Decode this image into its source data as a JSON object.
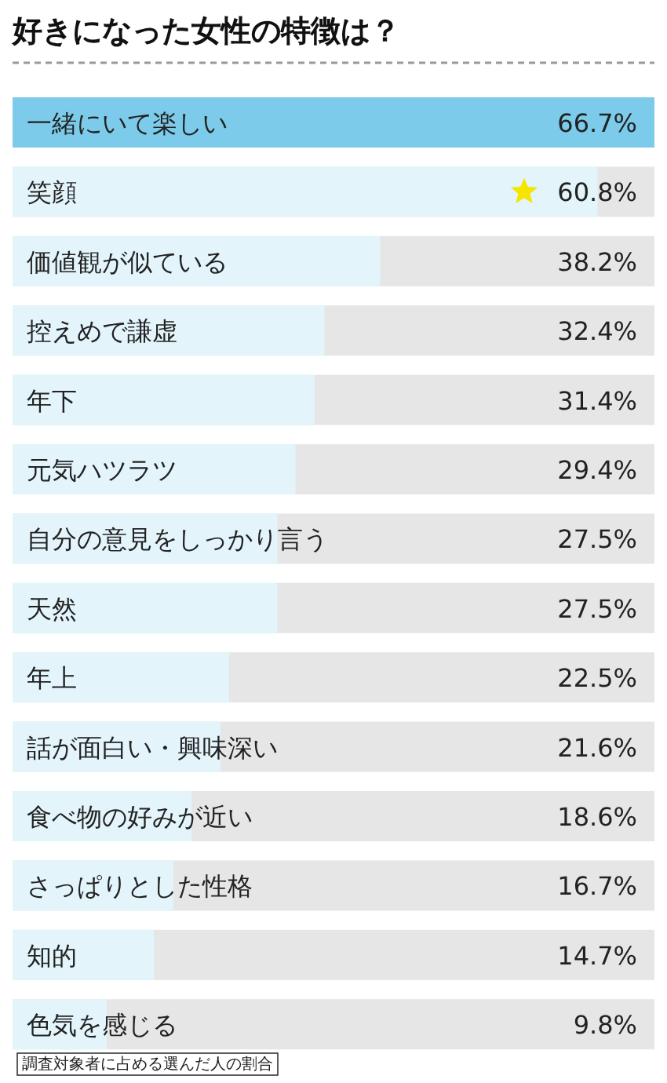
{
  "chart_data": {
    "type": "bar",
    "orientation": "horizontal",
    "title": "好きになった女性の特徴は？",
    "categories": [
      "一緒にいて楽しい",
      "笑顔",
      "価値観が似ている",
      "控えめで謙虚",
      "年下",
      "元気ハツラツ",
      "自分の意見をしっかり言う",
      "天然",
      "年上",
      "話が面白い・興味深い",
      "食べ物の好みが近い",
      "さっぱりとした性格",
      "知的",
      "色気を感じる"
    ],
    "values": [
      66.7,
      60.8,
      38.2,
      32.4,
      31.4,
      29.4,
      27.5,
      27.5,
      22.5,
      21.6,
      18.6,
      16.7,
      14.7,
      9.8
    ],
    "colors": [
      "#7ccbea",
      "#e3f4fb",
      "#e3f4fb",
      "#e3f4fb",
      "#e3f4fb",
      "#e3f4fb",
      "#e3f4fb",
      "#e3f4fb",
      "#e3f4fb",
      "#e3f4fb",
      "#e3f4fb",
      "#e3f4fb",
      "#e3f4fb",
      "#e3f4fb"
    ],
    "value_labels": [
      "66.7%",
      "60.8%",
      "38.2%",
      "32.4%",
      "31.4%",
      "29.4%",
      "27.5%",
      "27.5%",
      "22.5%",
      "21.6%",
      "18.6%",
      "16.7%",
      "14.7%",
      "9.8%"
    ],
    "annotations": [
      "調査対象者に占める選んだ人の割合"
    ]
  }
}
